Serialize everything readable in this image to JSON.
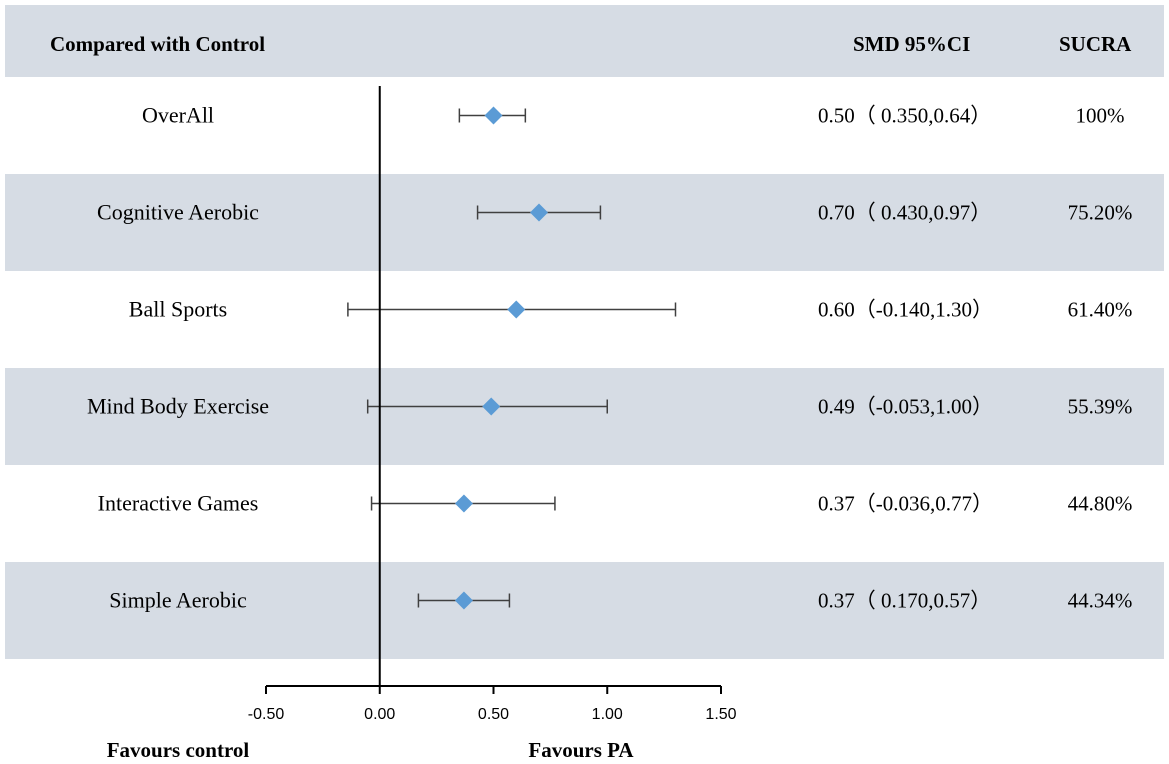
{
  "chart_data": {
    "type": "forest",
    "header": {
      "compared": "Compared with Control",
      "smd": "SMD 95%CI",
      "sucra": "SUCRA"
    },
    "rows": [
      {
        "label": "OverAll",
        "smd": 0.5,
        "lower": 0.35,
        "upper": 0.64,
        "ci_text": "0.50（ 0.350,0.64）",
        "sucra": "100%"
      },
      {
        "label": "Cognitive Aerobic",
        "smd": 0.7,
        "lower": 0.43,
        "upper": 0.97,
        "ci_text": "0.70（ 0.430,0.97）",
        "sucra": "75.20%"
      },
      {
        "label": "Ball Sports",
        "smd": 0.6,
        "lower": -0.14,
        "upper": 1.3,
        "ci_text": "0.60（-0.140,1.30）",
        "sucra": "61.40%"
      },
      {
        "label": "Mind Body Exercise",
        "smd": 0.49,
        "lower": -0.053,
        "upper": 1.0,
        "ci_text": "0.49（-0.053,1.00）",
        "sucra": "55.39%"
      },
      {
        "label": "Interactive Games",
        "smd": 0.37,
        "lower": -0.036,
        "upper": 0.77,
        "ci_text": "0.37（-0.036,0.77）",
        "sucra": "44.80%"
      },
      {
        "label": "Simple Aerobic",
        "smd": 0.37,
        "lower": 0.17,
        "upper": 0.57,
        "ci_text": "0.37（ 0.170,0.57）",
        "sucra": "44.34%"
      }
    ],
    "x_axis": {
      "range": [
        -0.5,
        1.5
      ],
      "ticks": [
        -0.5,
        0.0,
        0.5,
        1.0,
        1.5
      ],
      "tick_labels": [
        "-0.50",
        "0.00",
        "0.50",
        "1.00",
        "1.50"
      ],
      "reference_line": 0
    },
    "footer": {
      "left_label": "Favours control",
      "right_label": "Favours PA"
    },
    "colors": {
      "band": "#d6dce4",
      "marker": "#5b9bd5",
      "line": "#000000",
      "whisker": "#404040"
    }
  }
}
